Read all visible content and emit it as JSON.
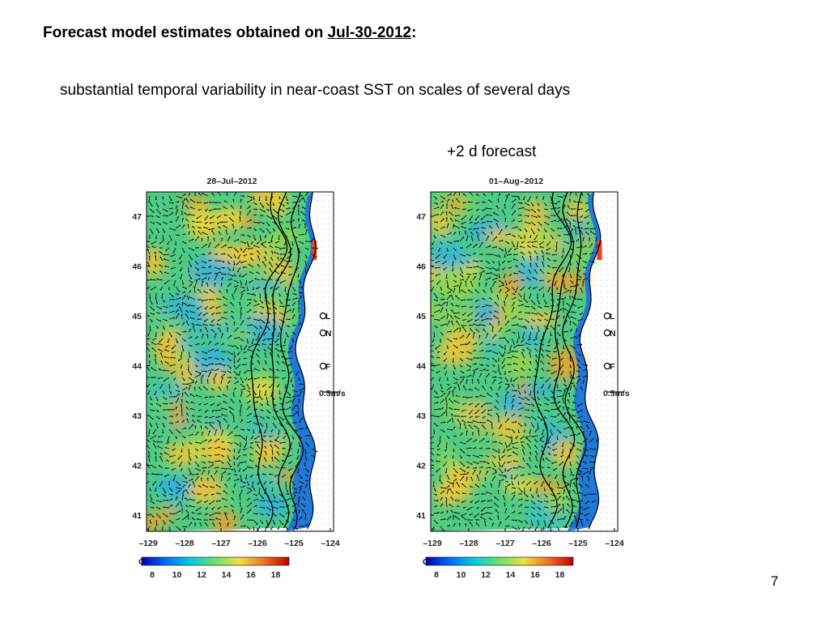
{
  "header": {
    "title_prefix": "Forecast model estimates obtained on ",
    "title_date": "Jul-30-2012",
    "title_suffix": ":"
  },
  "subtitle": "substantial temporal variability in near-coast SST on scales of several days",
  "forecast_label": "+2 d forecast",
  "page_number": "7",
  "maps": [
    {
      "title": "28–Jul–2012",
      "lat_ticks": [
        "47",
        "46",
        "45",
        "44",
        "43",
        "42",
        "41"
      ],
      "lon_ticks": [
        "–129",
        "–128",
        "–127",
        "–126",
        "–125",
        "–124"
      ],
      "stations": [
        "L",
        "N",
        "F"
      ],
      "scale_label": "0.5m/s",
      "colorbar_unit": "C",
      "colorbar_ticks": [
        "8",
        "10",
        "12",
        "14",
        "16",
        "18"
      ],
      "seed": 7
    },
    {
      "title": "01–Aug–2012",
      "lat_ticks": [
        "47",
        "46",
        "45",
        "44",
        "43",
        "42",
        "41"
      ],
      "lon_ticks": [
        "–129",
        "–128",
        "–127",
        "–126",
        "–125",
        "–124"
      ],
      "stations": [
        "L",
        "N",
        "F"
      ],
      "scale_label": "0.5m/s",
      "colorbar_unit": "C",
      "colorbar_ticks": [
        "8",
        "10",
        "12",
        "14",
        "16",
        "18"
      ],
      "seed": 19
    }
  ],
  "colors": {
    "ocean_base": "#4ecb84",
    "coast_cold": "#1d6fe0",
    "warm": "#f0c83a",
    "land_dots": "#d0d0d0",
    "vectors": "#111111"
  },
  "colorbar_stops": [
    "#0000b0",
    "#0070ff",
    "#00d0e0",
    "#6ee06a",
    "#f0e040",
    "#f07020",
    "#c00000"
  ]
}
